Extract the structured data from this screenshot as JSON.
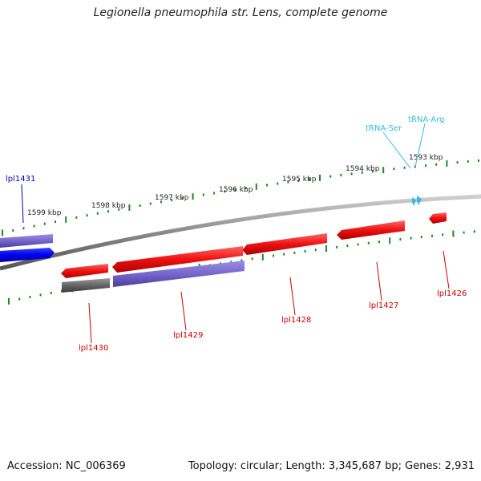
{
  "title": "Legionella pneumophila str. Lens, complete genome",
  "footer": {
    "accession": "Accession: NC_006369",
    "topology": "Topology: circular; Length: 3,345,687 bp; Genes: 2,931"
  },
  "kbp_labels": [
    "1599 kbp",
    "1598 kbp",
    "1597 kbp",
    "1596 kbp",
    "1595 kbp",
    "1594 kbp",
    "1593 kbp"
  ],
  "genes": [
    {
      "name": "lpl1431",
      "label": "lpl1431"
    },
    {
      "name": "lpl1430",
      "label": "lpl1430"
    },
    {
      "name": "lpl1429",
      "label": "lpl1429"
    },
    {
      "name": "lpl1428",
      "label": "lpl1428"
    },
    {
      "name": "lpl1427",
      "label": "lpl1427"
    },
    {
      "name": "lpl1426",
      "label": "lpl1426"
    }
  ],
  "trnas": [
    {
      "label": "tRNA-Ser"
    },
    {
      "label": "tRNA-Arg"
    }
  ],
  "colors": {
    "backbone": "#8a8a8a",
    "tick": "#1e8a1e",
    "gene_red": "#ee1111",
    "gene_purple": "#7766cc",
    "gene_blue": "#0000ee",
    "gene_gray": "#666666",
    "trna": "#33bbee"
  }
}
